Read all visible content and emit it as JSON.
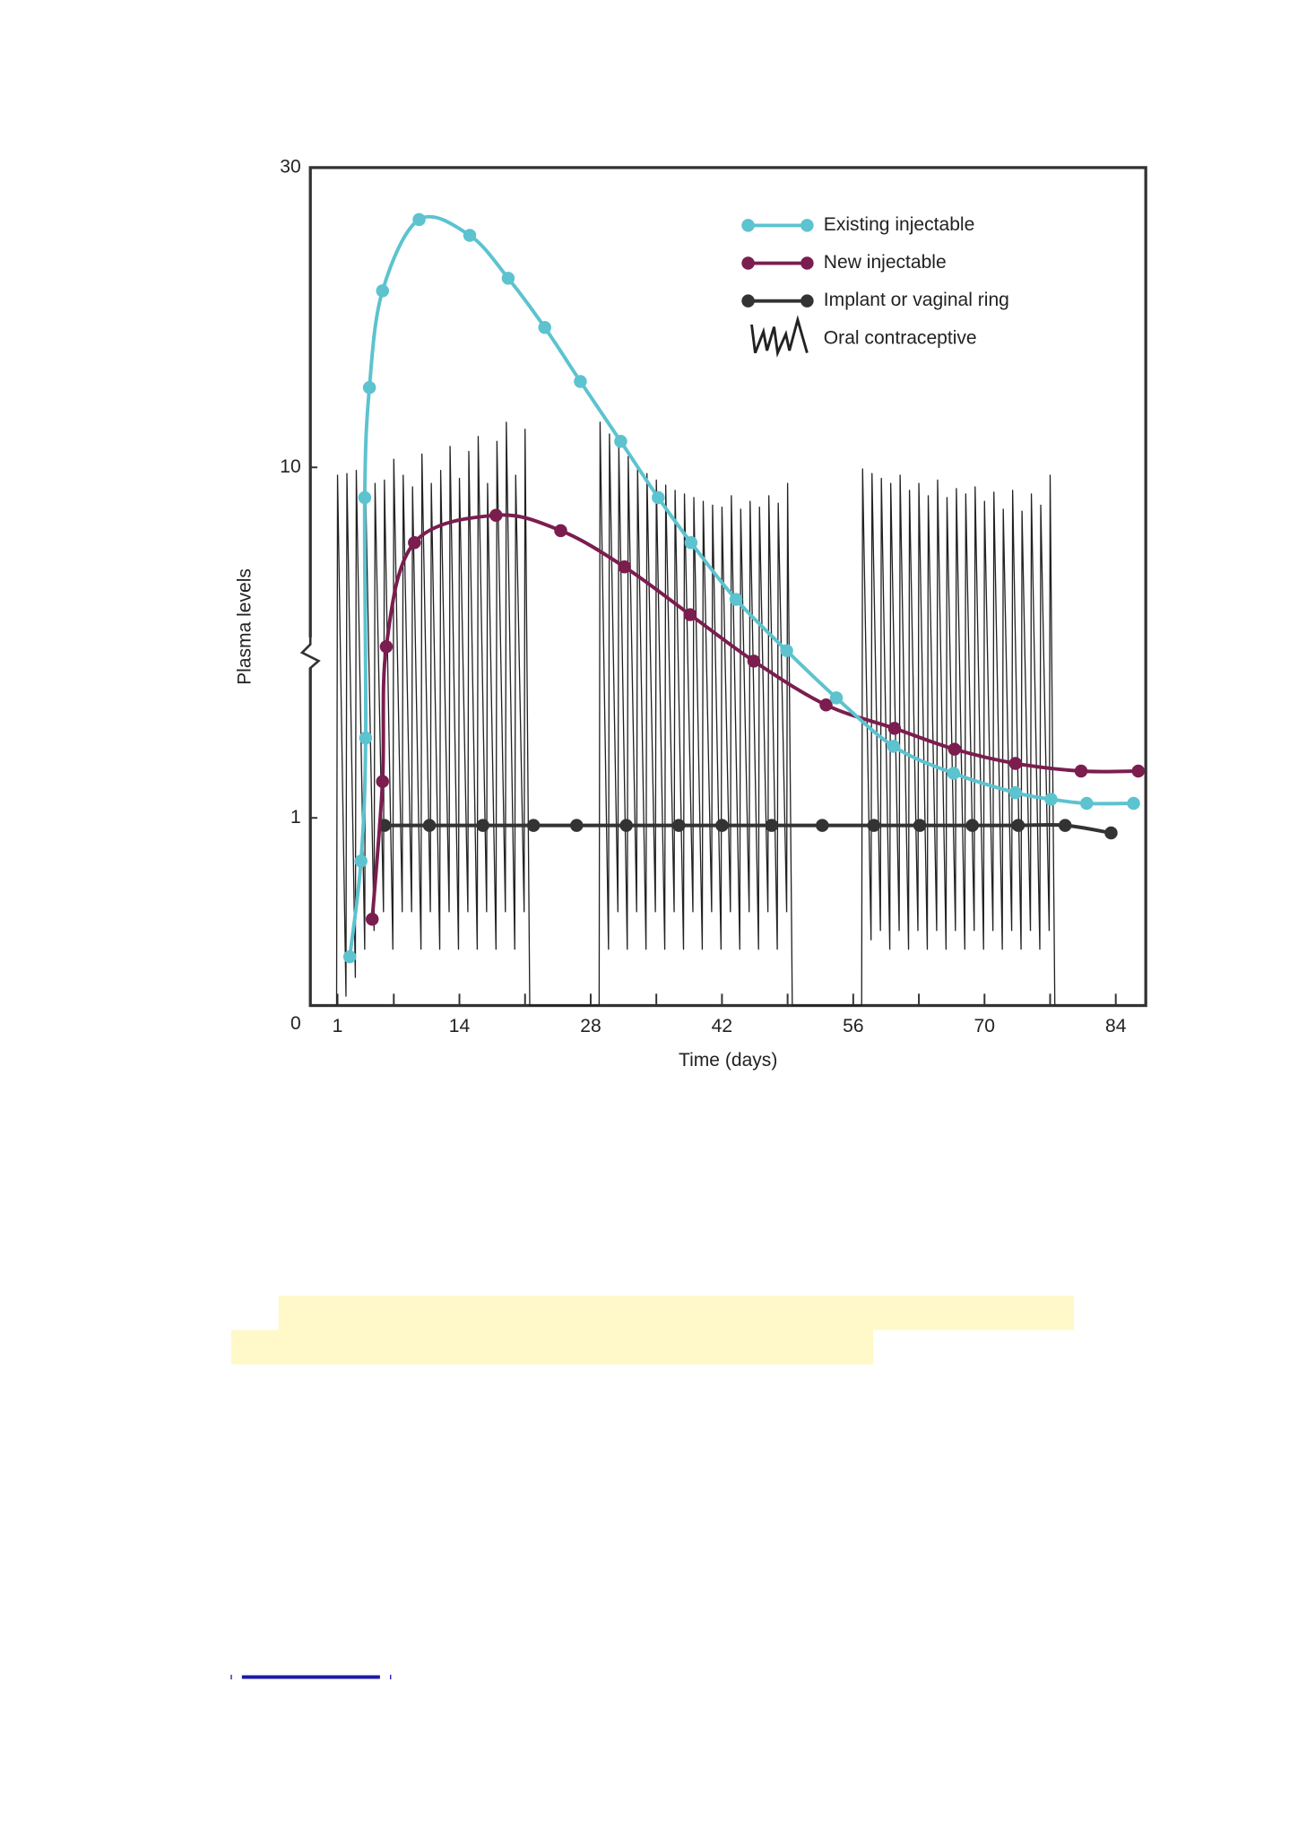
{
  "chart_data": {
    "type": "line",
    "ylabel": "Plasma levels",
    "xlabel": "Time (days)",
    "xlim": [
      -1.9,
      87.2
    ],
    "ylim": [
      0,
      30
    ],
    "xticks": [
      1,
      14,
      28,
      42,
      56,
      70,
      84
    ],
    "x_minor_ticks": [
      7,
      21,
      35,
      49,
      63,
      77
    ],
    "yticks": [
      0,
      1,
      10,
      30
    ],
    "y_axis_break": true,
    "legend": "top-right",
    "series": [
      {
        "name": "Existing injectable",
        "color": "#5cc3cf",
        "markers": true,
        "smooth": true,
        "x": [
          2.3,
          3.5,
          4.0,
          3.9,
          4.4,
          5.8,
          9.7,
          15.1,
          19.2,
          23.1,
          26.9,
          31.2,
          35.2,
          38.7,
          43.5,
          48.9,
          54.2,
          60.3,
          66.7,
          73.3,
          77.1,
          80.9,
          85.9
        ],
        "values": [
          0.26,
          0.77,
          1.69,
          8.2,
          13.4,
          19.1,
          24.8,
          23.4,
          20.0,
          16.7,
          13.7,
          11.0,
          8.2,
          6.1,
          4.2,
          3.0,
          2.2,
          1.6,
          1.34,
          1.18,
          1.13,
          1.1,
          1.1
        ]
      },
      {
        "name": "New injectable",
        "color": "#7b1d4f",
        "markers": true,
        "smooth": true,
        "x": [
          4.7,
          5.8,
          6.2,
          9.2,
          17.9,
          24.8,
          31.6,
          38.6,
          45.4,
          53.1,
          60.4,
          66.8,
          73.3,
          80.3,
          86.4
        ],
        "values": [
          0.46,
          1.27,
          3.08,
          6.1,
          7.3,
          6.6,
          5.2,
          3.8,
          2.8,
          2.1,
          1.8,
          1.57,
          1.43,
          1.36,
          1.36
        ]
      },
      {
        "name": "Implant or vaginal ring",
        "color": "#333333",
        "markers": true,
        "smooth": true,
        "x": [
          6.0,
          10.8,
          16.5,
          21.9,
          26.5,
          31.8,
          37.4,
          42.0,
          47.3,
          52.7,
          58.2,
          63.1,
          68.7,
          73.6,
          78.6,
          83.5
        ],
        "values": [
          0.96,
          0.96,
          0.96,
          0.96,
          0.96,
          0.96,
          0.96,
          0.96,
          0.96,
          0.96,
          0.96,
          0.96,
          0.96,
          0.96,
          0.96,
          0.92
        ]
      },
      {
        "name": "Oral contraceptive",
        "color": "#222222",
        "markers": false,
        "smooth": false,
        "x": [
          0.9,
          1,
          1.9,
          2,
          2.9,
          3,
          3.9,
          4,
          4.9,
          5,
          5.9,
          6,
          6.9,
          7,
          7.9,
          8,
          8.9,
          9,
          9.9,
          10,
          10.9,
          11,
          11.9,
          12,
          12.9,
          13,
          13.9,
          14,
          14.9,
          15,
          15.9,
          16,
          16.9,
          17,
          17.9,
          18,
          18.9,
          19,
          19.9,
          20,
          20.9,
          21,
          21.5,
          28.9,
          29,
          29.9,
          30,
          30.9,
          31,
          31.9,
          32,
          32.9,
          33,
          33.9,
          34,
          34.9,
          35,
          35.9,
          36,
          36.9,
          37,
          37.9,
          38,
          38.9,
          39,
          39.9,
          40,
          40.9,
          41,
          41.9,
          42,
          42.9,
          43,
          43.9,
          44,
          44.9,
          45,
          45.9,
          46,
          46.9,
          47,
          47.9,
          48,
          48.9,
          49,
          49.5,
          56.9,
          57,
          57.9,
          58,
          58.9,
          59,
          59.9,
          60,
          60.9,
          61,
          61.9,
          62,
          62.9,
          63,
          63.9,
          64,
          64.9,
          65,
          65.9,
          66,
          66.9,
          67,
          67.9,
          68,
          68.9,
          69,
          69.9,
          70,
          70.9,
          71,
          71.9,
          72,
          72.9,
          73,
          73.9,
          74,
          74.9,
          75,
          75.9,
          76,
          76.9,
          77,
          77.5
        ],
        "values": [
          0,
          9.5,
          0.05,
          9.6,
          0.15,
          9.8,
          0.3,
          8.5,
          0.4,
          9.0,
          0.5,
          9.2,
          0.3,
          10.3,
          0.5,
          9.5,
          0.5,
          8.8,
          0.3,
          10.5,
          0.5,
          9.0,
          0.3,
          9.8,
          0.5,
          10.8,
          0.3,
          9.3,
          0.5,
          10.6,
          0.3,
          11.2,
          0.5,
          9.0,
          0.3,
          11.0,
          0.5,
          11.8,
          0.3,
          9.5,
          0.5,
          11.5,
          0,
          0,
          11.8,
          0.3,
          11.3,
          0.5,
          10.8,
          0.3,
          10.4,
          0.5,
          10.0,
          0.3,
          9.6,
          0.5,
          9.2,
          0.3,
          8.9,
          0.5,
          8.6,
          0.3,
          8.4,
          0.5,
          8.2,
          0.3,
          8.0,
          0.5,
          7.8,
          0.3,
          7.7,
          0.5,
          8.3,
          0.3,
          7.6,
          0.5,
          8.0,
          0.3,
          7.7,
          0.5,
          8.3,
          0.3,
          7.9,
          0.5,
          9.0,
          0,
          0,
          9.9,
          0.35,
          9.6,
          0.4,
          9.3,
          0.3,
          9.0,
          0.4,
          9.5,
          0.3,
          8.6,
          0.4,
          9.0,
          0.3,
          8.3,
          0.4,
          9.2,
          0.3,
          8.2,
          0.4,
          8.7,
          0.3,
          8.4,
          0.4,
          8.8,
          0.3,
          8.0,
          0.4,
          8.5,
          0.3,
          7.6,
          0.4,
          8.6,
          0.3,
          7.5,
          0.4,
          8.4,
          0.3,
          7.8,
          0.4,
          9.5,
          0
        ]
      }
    ]
  }
}
